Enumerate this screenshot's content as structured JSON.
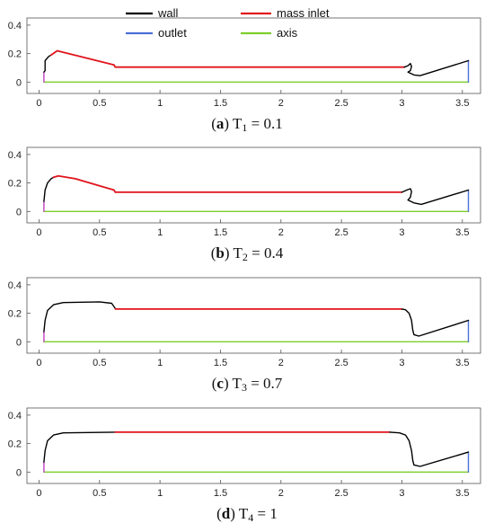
{
  "legend": [
    {
      "label": "wall",
      "color": "#000000"
    },
    {
      "label": "mass inlet",
      "color": "#e0141c"
    },
    {
      "label": "outlet",
      "color": "#4a6fd8"
    },
    {
      "label": "axis",
      "color": "#7ccf2a"
    }
  ],
  "colors": {
    "wall": "#000000",
    "inlet": "#e0141c",
    "outlet": "#4a6fd8",
    "axis": "#7ccf2a",
    "side": "#c040c0"
  },
  "chart_data": [
    {
      "type": "line",
      "caption": {
        "letter": "a",
        "label": "T",
        "sub": "1",
        "value": "= 0.1"
      },
      "xlim": [
        -0.1,
        3.65
      ],
      "ylim": [
        -0.08,
        0.45
      ],
      "xticks": [
        "0",
        "0.5",
        "1",
        "1.5",
        "2",
        "2.5",
        "3",
        "3.5"
      ],
      "yticks": [
        "0",
        "0.2",
        "0.4"
      ],
      "series": [
        {
          "kind": "axis",
          "x": [
            0.04,
            3.55
          ],
          "y": [
            0,
            0
          ]
        },
        {
          "kind": "side",
          "x": [
            0.04,
            0.04
          ],
          "y": [
            0,
            0.07
          ]
        },
        {
          "kind": "outlet",
          "x": [
            3.55,
            3.55
          ],
          "y": [
            0,
            0.15
          ]
        },
        {
          "kind": "wall",
          "x": [
            0.04,
            0.05,
            0.05,
            0.08,
            0.1
          ],
          "y": [
            0.07,
            0.08,
            0.15,
            0.18,
            0.19
          ]
        },
        {
          "kind": "inlet",
          "x": [
            0.1,
            0.15,
            0.62,
            0.63,
            3.02
          ],
          "y": [
            0.19,
            0.22,
            0.12,
            0.105,
            0.105
          ]
        },
        {
          "kind": "wall",
          "x": [
            3.02,
            3.05,
            3.07,
            3.08,
            3.07,
            3.05,
            3.1,
            3.15,
            3.55
          ],
          "y": [
            0.105,
            0.115,
            0.13,
            0.11,
            0.08,
            0.07,
            0.05,
            0.045,
            0.15
          ]
        }
      ]
    },
    {
      "type": "line",
      "caption": {
        "letter": "b",
        "label": "T",
        "sub": "2",
        "value": "= 0.4"
      },
      "xlim": [
        -0.1,
        3.65
      ],
      "ylim": [
        -0.08,
        0.45
      ],
      "xticks": [
        "0",
        "0.5",
        "1",
        "1.5",
        "2",
        "2.5",
        "3",
        "3.5"
      ],
      "yticks": [
        "0",
        "0.2",
        "0.4"
      ],
      "series": [
        {
          "kind": "axis",
          "x": [
            0.04,
            3.55
          ],
          "y": [
            0,
            0
          ]
        },
        {
          "kind": "side",
          "x": [
            0.04,
            0.04
          ],
          "y": [
            0,
            0.07
          ]
        },
        {
          "kind": "outlet",
          "x": [
            3.55,
            3.55
          ],
          "y": [
            0,
            0.15
          ]
        },
        {
          "kind": "wall",
          "x": [
            0.04,
            0.05,
            0.07,
            0.1,
            0.12
          ],
          "y": [
            0.07,
            0.15,
            0.2,
            0.23,
            0.24
          ]
        },
        {
          "kind": "inlet",
          "x": [
            0.12,
            0.16,
            0.3,
            0.62,
            0.63,
            3.0
          ],
          "y": [
            0.24,
            0.25,
            0.23,
            0.15,
            0.135,
            0.135
          ]
        },
        {
          "kind": "wall",
          "x": [
            3.0,
            3.04,
            3.07,
            3.08,
            3.07,
            3.05,
            3.1,
            3.16,
            3.55
          ],
          "y": [
            0.135,
            0.15,
            0.16,
            0.14,
            0.1,
            0.08,
            0.06,
            0.05,
            0.15
          ]
        }
      ]
    },
    {
      "type": "line",
      "caption": {
        "letter": "c",
        "label": "T",
        "sub": "3",
        "value": "= 0.7"
      },
      "xlim": [
        -0.1,
        3.65
      ],
      "ylim": [
        -0.08,
        0.45
      ],
      "xticks": [
        "0",
        "0.5",
        "1",
        "1.5",
        "2",
        "2.5",
        "3",
        "3.5"
      ],
      "yticks": [
        "0",
        "0.2",
        "0.4"
      ],
      "series": [
        {
          "kind": "axis",
          "x": [
            0.04,
            3.55
          ],
          "y": [
            0,
            0
          ]
        },
        {
          "kind": "side",
          "x": [
            0.04,
            0.04
          ],
          "y": [
            0,
            0.07
          ]
        },
        {
          "kind": "outlet",
          "x": [
            3.55,
            3.55
          ],
          "y": [
            0,
            0.15
          ]
        },
        {
          "kind": "wall",
          "x": [
            0.04,
            0.05,
            0.07,
            0.12,
            0.2,
            0.5,
            0.6,
            0.63
          ],
          "y": [
            0.07,
            0.15,
            0.22,
            0.26,
            0.275,
            0.28,
            0.27,
            0.235
          ]
        },
        {
          "kind": "inlet",
          "x": [
            0.63,
            3.0
          ],
          "y": [
            0.23,
            0.23
          ]
        },
        {
          "kind": "wall",
          "x": [
            3.0,
            3.03,
            3.06,
            3.08,
            3.09,
            3.1,
            3.14,
            3.55
          ],
          "y": [
            0.23,
            0.225,
            0.2,
            0.15,
            0.08,
            0.05,
            0.04,
            0.15
          ]
        }
      ]
    },
    {
      "type": "line",
      "caption": {
        "letter": "d",
        "label": "T",
        "sub": "4",
        "value": "= 1"
      },
      "xlim": [
        -0.1,
        3.65
      ],
      "ylim": [
        -0.08,
        0.45
      ],
      "xticks": [
        "0",
        "0.5",
        "1",
        "1.5",
        "2",
        "2.5",
        "3",
        "3.5"
      ],
      "yticks": [
        "0",
        "0.2",
        "0.4"
      ],
      "series": [
        {
          "kind": "axis",
          "x": [
            0.04,
            3.55
          ],
          "y": [
            0,
            0
          ]
        },
        {
          "kind": "side",
          "x": [
            0.04,
            0.04
          ],
          "y": [
            0,
            0.07
          ]
        },
        {
          "kind": "outlet",
          "x": [
            3.55,
            3.55
          ],
          "y": [
            0,
            0.14
          ]
        },
        {
          "kind": "wall",
          "x": [
            0.04,
            0.05,
            0.07,
            0.12,
            0.2,
            0.63
          ],
          "y": [
            0.07,
            0.15,
            0.22,
            0.26,
            0.275,
            0.28
          ]
        },
        {
          "kind": "inlet",
          "x": [
            0.63,
            2.9
          ],
          "y": [
            0.28,
            0.28
          ]
        },
        {
          "kind": "wall",
          "x": [
            2.9,
            2.98,
            3.03,
            3.06,
            3.08,
            3.09,
            3.1,
            3.15,
            3.55
          ],
          "y": [
            0.28,
            0.275,
            0.26,
            0.22,
            0.15,
            0.08,
            0.05,
            0.04,
            0.14
          ]
        }
      ]
    }
  ]
}
